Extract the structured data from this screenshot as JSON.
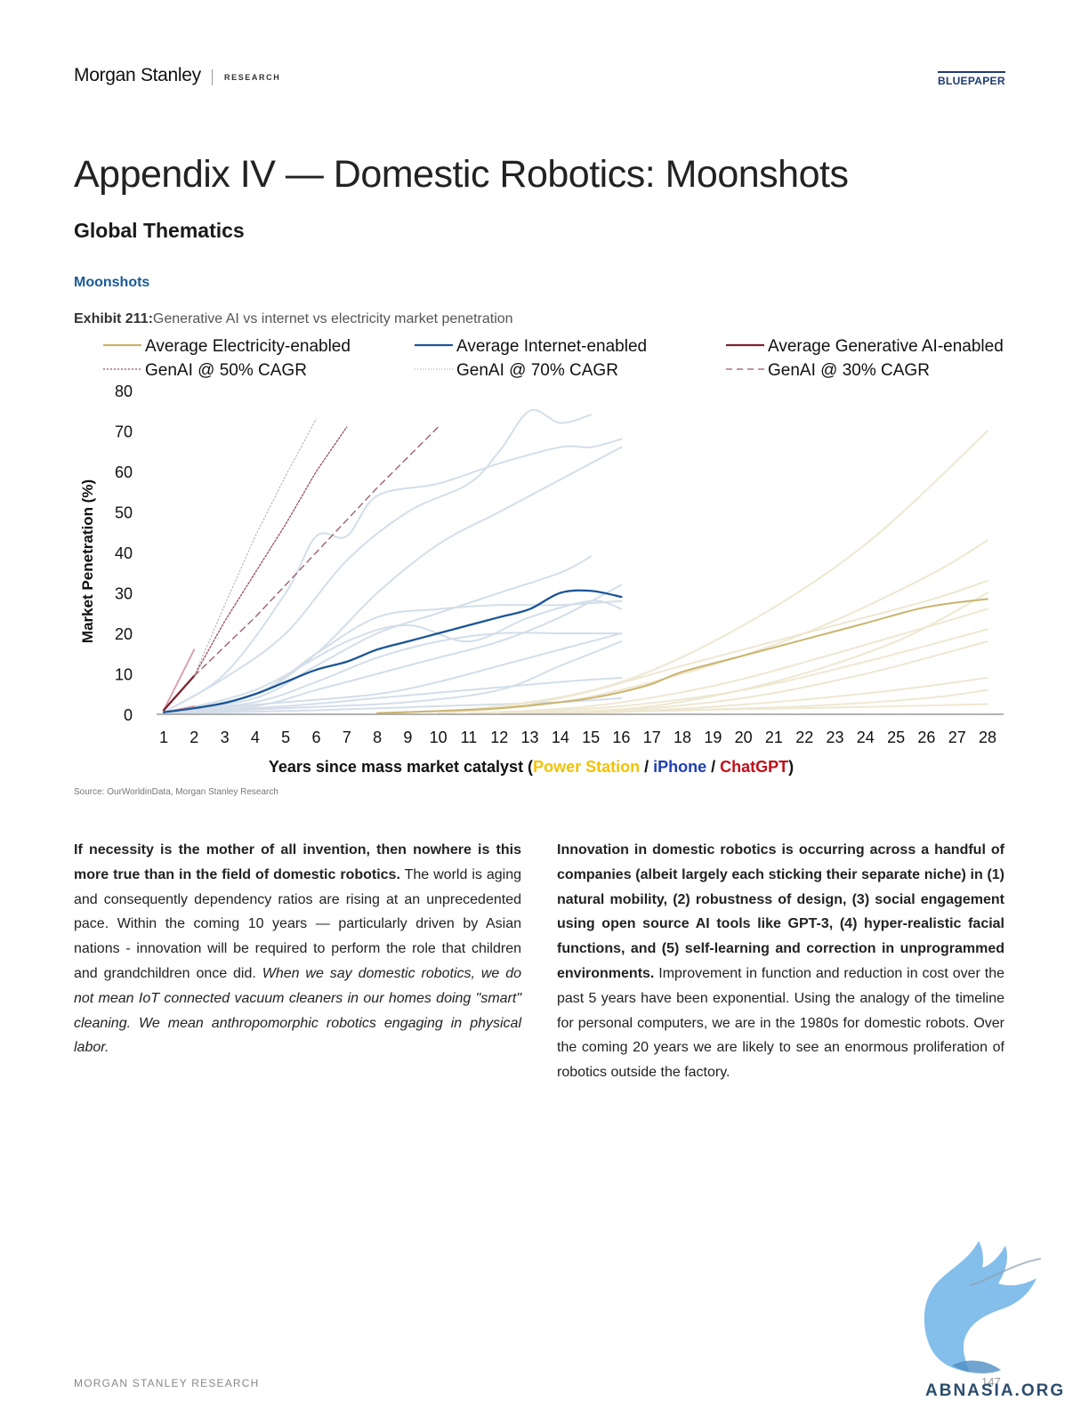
{
  "header": {
    "brand": "Morgan Stanley",
    "research_label": "RESEARCH",
    "bluepaper_label": "BLUEPAPER"
  },
  "page": {
    "title": "Appendix IV — Domestic Robotics: Moonshots",
    "subtitle": "Global Thematics",
    "section": "Moonshots",
    "exhibit_label": "Exhibit 211:",
    "exhibit_title": "Generative AI vs internet vs electricity market penetration",
    "source": "Source: OurWorldinData, Morgan Stanley Research"
  },
  "chart_data": {
    "type": "line",
    "title": "",
    "ylabel": "Market Penetration (%)",
    "xlabel_parts": [
      {
        "text": "Years since mass market catalyst (",
        "color": "#111111"
      },
      {
        "text": "Power Station",
        "color": "#f2c200"
      },
      {
        "text": " / ",
        "color": "#111111"
      },
      {
        "text": "iPhone",
        "color": "#1f3fb4"
      },
      {
        "text": " / ",
        "color": "#111111"
      },
      {
        "text": "ChatGPT",
        "color": "#c0101a"
      },
      {
        "text": ")",
        "color": "#111111"
      }
    ],
    "xlim": [
      1,
      28
    ],
    "ylim": [
      0,
      80
    ],
    "xticks": [
      1,
      2,
      3,
      4,
      5,
      6,
      7,
      8,
      9,
      10,
      11,
      12,
      13,
      14,
      15,
      16,
      17,
      18,
      19,
      20,
      21,
      22,
      23,
      24,
      25,
      26,
      27,
      28
    ],
    "yticks": [
      0,
      10,
      20,
      30,
      40,
      50,
      60,
      70,
      80
    ],
    "legend": [
      {
        "name": "Average Electricity-enabled",
        "color": "#c9b46e",
        "dash": "solid"
      },
      {
        "name": "Average Internet-enabled",
        "color": "#1a5696",
        "dash": "solid"
      },
      {
        "name": "Average Generative AI-enabled",
        "color": "#7d2230",
        "dash": "solid"
      },
      {
        "name": "GenAI @ 50% CAGR",
        "color": "#9a4a5e",
        "dash": "dotted-fine"
      },
      {
        "name": "GenAI @ 70% CAGR",
        "color": "#aaaaaa",
        "dash": "dotted"
      },
      {
        "name": "GenAI @ 30% CAGR",
        "color": "#9a5560",
        "dash": "dashed"
      }
    ],
    "series": [
      {
        "name": "Average Electricity-enabled",
        "color": "#c9b46e",
        "width": 2,
        "dash": "",
        "x": [
          8,
          10,
          12,
          14,
          15,
          16,
          17,
          18,
          20,
          22,
          24,
          26,
          28
        ],
        "y": [
          0.3,
          0.8,
          1.5,
          3,
          4,
          5.5,
          7.5,
          10.5,
          14.5,
          18.5,
          22.5,
          26.5,
          28.5
        ]
      },
      {
        "name": "Average Internet-enabled",
        "color": "#1a5696",
        "width": 2.3,
        "dash": "",
        "x": [
          1,
          2,
          3,
          4,
          5,
          6,
          7,
          8,
          9,
          10,
          11,
          12,
          13,
          14,
          15,
          16
        ],
        "y": [
          0.5,
          1.5,
          2.8,
          5,
          8,
          11,
          13,
          16,
          18,
          20,
          22,
          24,
          26,
          30,
          30.5,
          29
        ]
      },
      {
        "name": "Average Generative AI-enabled",
        "color": "#7d2230",
        "width": 2.3,
        "dash": "",
        "x": [
          1,
          2
        ],
        "y": [
          1,
          9.5
        ]
      },
      {
        "name": "GenAI @ 50% CAGR",
        "color": "#9a4a5e",
        "width": 1.3,
        "dash": "2 2",
        "x": [
          2,
          3,
          4,
          5,
          6,
          7
        ],
        "y": [
          9.5,
          23,
          35,
          47,
          60,
          71
        ]
      },
      {
        "name": "GenAI @ 70% CAGR",
        "color": "#aaaaaa",
        "width": 1,
        "dash": "1.5 2.5",
        "x": [
          2,
          3,
          4,
          5,
          6
        ],
        "y": [
          9.5,
          27,
          44,
          59,
          73
        ]
      },
      {
        "name": "GenAI @ 30% CAGR",
        "color": "#9a5560",
        "width": 1.3,
        "dash": "7 5",
        "x": [
          2,
          4,
          6,
          8,
          10
        ],
        "y": [
          9.5,
          24,
          40,
          56,
          71
        ]
      }
    ],
    "background_series": [
      {
        "group": "internet",
        "x": [
          1,
          3,
          5,
          6,
          7,
          8,
          10,
          12,
          14,
          15,
          16
        ],
        "y": [
          0.5,
          10,
          30,
          44,
          44,
          54,
          57,
          62,
          66,
          66,
          68
        ]
      },
      {
        "group": "internet",
        "x": [
          1,
          3,
          5,
          7,
          9,
          11,
          12,
          13,
          14,
          15
        ],
        "y": [
          0.5,
          9,
          20,
          38,
          50,
          57,
          65,
          75,
          72,
          74
        ]
      },
      {
        "group": "internet",
        "x": [
          1,
          4,
          6,
          8,
          10,
          12,
          14,
          16
        ],
        "y": [
          0.5,
          5,
          15,
          30,
          42,
          50,
          58,
          66
        ]
      },
      {
        "group": "internet",
        "x": [
          1,
          4,
          6,
          8,
          10,
          12,
          14,
          16
        ],
        "y": [
          0.5,
          5,
          15,
          24,
          26,
          27,
          27,
          28
        ]
      },
      {
        "group": "internet",
        "x": [
          1,
          4,
          6,
          8,
          10,
          12,
          14,
          15
        ],
        "y": [
          0.5,
          4,
          12,
          20,
          25,
          30,
          35,
          39
        ]
      },
      {
        "group": "internet",
        "x": [
          1,
          4,
          6,
          8,
          10,
          12,
          14,
          16
        ],
        "y": [
          0.5,
          3,
          8,
          14,
          18,
          20,
          20,
          20
        ]
      },
      {
        "group": "internet",
        "x": [
          1,
          4,
          6,
          8,
          10,
          12,
          14,
          16
        ],
        "y": [
          0.5,
          2,
          6,
          10,
          14,
          18,
          24,
          32
        ]
      },
      {
        "group": "internet",
        "x": [
          1,
          5,
          8,
          10,
          12,
          14,
          16
        ],
        "y": [
          0.5,
          3,
          5,
          8,
          12,
          16,
          20
        ]
      },
      {
        "group": "internet",
        "x": [
          1,
          5,
          8,
          11,
          14,
          16
        ],
        "y": [
          0.3,
          2,
          4,
          6,
          8,
          9
        ]
      },
      {
        "group": "internet",
        "x": [
          1,
          6,
          10,
          14,
          16
        ],
        "y": [
          0.2,
          1,
          2,
          3,
          4
        ]
      },
      {
        "group": "internet",
        "x": [
          1,
          4,
          7,
          9,
          11,
          13,
          15,
          16
        ],
        "y": [
          0.3,
          6,
          18,
          22,
          18,
          24,
          28,
          26
        ]
      },
      {
        "group": "internet",
        "x": [
          1,
          5,
          9,
          12,
          14,
          16
        ],
        "y": [
          0.2,
          1.5,
          3,
          6,
          12,
          18
        ]
      },
      {
        "group": "electricity",
        "x": [
          8,
          12,
          16,
          20,
          24,
          28
        ],
        "y": [
          0.2,
          2,
          8,
          22,
          42,
          70
        ]
      },
      {
        "group": "electricity",
        "x": [
          10,
          14,
          18,
          22,
          26,
          28
        ],
        "y": [
          0.2,
          3,
          10,
          20,
          34,
          43
        ]
      },
      {
        "group": "electricity",
        "x": [
          10,
          14,
          18,
          22,
          26,
          28
        ],
        "y": [
          0.2,
          4,
          12,
          20,
          28,
          33
        ]
      },
      {
        "group": "electricity",
        "x": [
          11,
          15,
          19,
          23,
          28
        ],
        "y": [
          0.2,
          2,
          7,
          15,
          26
        ]
      },
      {
        "group": "electricity",
        "x": [
          12,
          16,
          20,
          24,
          28
        ],
        "y": [
          0.2,
          2,
          6,
          13,
          21
        ]
      },
      {
        "group": "electricity",
        "x": [
          12,
          16,
          20,
          24,
          28
        ],
        "y": [
          0.2,
          1,
          4,
          10,
          18
        ]
      },
      {
        "group": "electricity",
        "x": [
          13,
          17,
          21,
          25,
          28
        ],
        "y": [
          0.2,
          1,
          3,
          6,
          9
        ]
      },
      {
        "group": "electricity",
        "x": [
          14,
          18,
          22,
          26,
          28
        ],
        "y": [
          0.2,
          1,
          2,
          4,
          6
        ]
      },
      {
        "group": "electricity",
        "x": [
          14,
          18,
          22,
          28
        ],
        "y": [
          0.2,
          1,
          1.5,
          2.5
        ]
      },
      {
        "group": "electricity",
        "x": [
          13,
          17,
          21,
          25,
          28
        ],
        "y": [
          0.2,
          2,
          8,
          18,
          30
        ]
      },
      {
        "group": "genai",
        "x": [
          1,
          2
        ],
        "y": [
          1,
          16
        ]
      },
      {
        "group": "genai",
        "x": [
          1,
          2
        ],
        "y": [
          0.5,
          2
        ]
      }
    ]
  },
  "body": {
    "col1_bold": "If necessity is the mother of all invention, then nowhere is this more true than in the field of domestic robotics.",
    "col1_text": " The world is aging and consequently dependency ratios are rising at an unprecedented pace. Within the coming 10 years — particularly driven by Asian nations - innovation will be required to perform the role that children and grandchildren once did. ",
    "col1_italic": "When we say domestic robotics, we do not mean IoT connected vacuum cleaners in our homes doing \"smart\" cleaning. We mean anthropomorphic robotics engaging in physical labor.",
    "col2_bold": "Innovation in domestic robotics is occurring across a handful of companies (albeit largely each sticking their separate niche) in (1) natural mobility, (2) robustness of design, (3) social engagement using open source AI tools like GPT-3, (4) hyper-realistic facial functions, and (5) self-learning and correction in unprogrammed environments.",
    "col2_text": " Improvement in function and reduction in cost over the past 5 years have been exponential. Using the analogy of the timeline for personal computers, we are in the 1980s for domestic robots. Over the coming 20 years we are likely to see an enormous proliferation of robotics outside the factory."
  },
  "footer": {
    "label": "MORGAN STANLEY RESEARCH",
    "page_number": "147",
    "watermark": "ABNASIA.ORG"
  },
  "colors": {
    "internet_bg": "#d3dee9",
    "electricity_bg": "#eee7d1",
    "genai_bg": "#d79aaa"
  }
}
